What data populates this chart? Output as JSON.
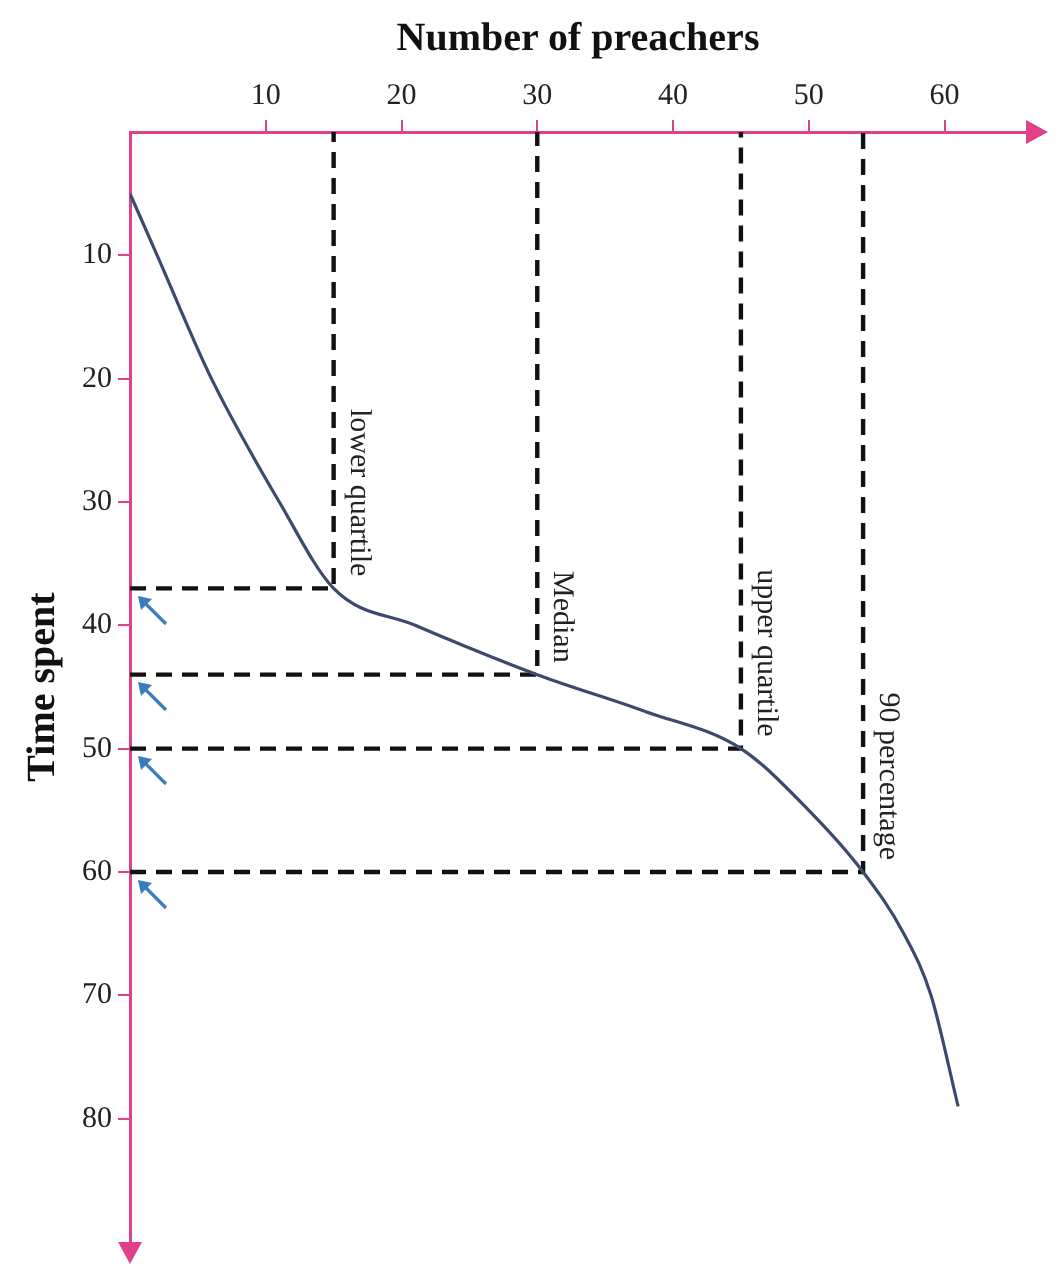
{
  "chart_data": {
    "type": "line",
    "xlabel": "Number of preachers",
    "ylabel": "Time spent",
    "x": [
      0,
      2,
      6,
      11,
      15,
      21,
      30,
      38,
      45,
      50,
      54,
      57,
      59,
      61
    ],
    "series": [
      {
        "color": "#3c4a6e",
        "values": [
          5,
          10,
          20,
          30,
          37,
          40,
          44,
          47,
          50,
          55,
          60,
          65,
          70,
          79
        ]
      },
      {
        "color": "#111111",
        "line_style": "dashed",
        "x": [
          0,
          15,
          15
        ],
        "values": [
          37,
          37,
          0
        ]
      },
      {
        "color": "#111111",
        "line_style": "dashed",
        "x": [
          0,
          30,
          30
        ],
        "values": [
          44,
          44,
          0
        ]
      },
      {
        "color": "#111111",
        "line_style": "dashed",
        "x": [
          0,
          45,
          45
        ],
        "values": [
          50,
          50,
          0
        ]
      },
      {
        "color": "#111111",
        "line_style": "dashed",
        "x": [
          0,
          54,
          54
        ],
        "values": [
          60,
          60,
          0
        ]
      }
    ],
    "xlim": [
      0,
      66
    ],
    "xticks": [
      10,
      20,
      30,
      40,
      50,
      60
    ],
    "ylim": [
      90,
      0
    ],
    "yticks": [
      10,
      20,
      30,
      40,
      50,
      60,
      70,
      80
    ],
    "annotations": [
      {
        "text": "lower quartile",
        "x": 15,
        "y": 37
      },
      {
        "text": "Median",
        "x": 30,
        "y": 44
      },
      {
        "text": "upper quartile",
        "x": 45,
        "y": 50
      },
      {
        "text": "90 percentage",
        "x": 54,
        "y": 60
      }
    ],
    "grid": false,
    "legend": false,
    "marker": "none",
    "line_style": "solid"
  }
}
